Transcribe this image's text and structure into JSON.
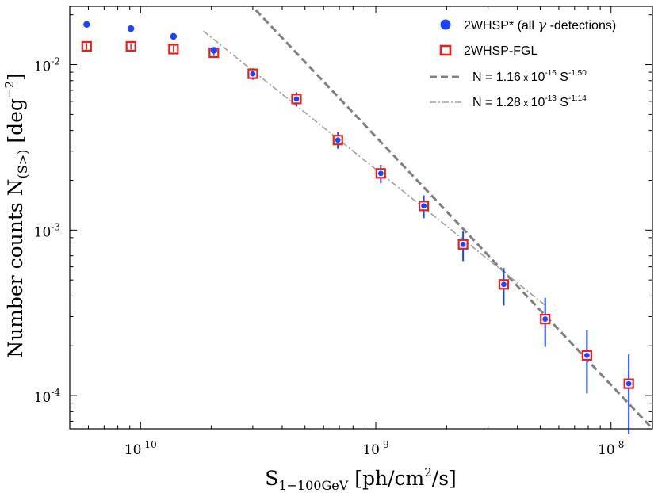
{
  "chart_data": {
    "type": "scatter",
    "xscale": "log",
    "yscale": "log",
    "xlim": [
      5e-11,
      1.5e-08
    ],
    "ylim": [
      6.3e-05,
      0.0225
    ],
    "xlabel": {
      "main": "S",
      "sub": "1−100GeV",
      "rest": " [ph/cm",
      "sup": "2",
      "tail": "/s]"
    },
    "ylabel": {
      "main": "Number counts N",
      "sub": "(S>)",
      "rest": " [deg",
      "sup": "−2",
      "tail": "]"
    },
    "xticks": [
      {
        "value": 1e-10,
        "base": "10",
        "exp": "-10"
      },
      {
        "value": 1e-09,
        "base": "10",
        "exp": "-9"
      },
      {
        "value": 1e-08,
        "base": "10",
        "exp": "-8"
      }
    ],
    "yticks": [
      {
        "value": 0.0001,
        "base": "10",
        "exp": "-4"
      },
      {
        "value": 0.001,
        "base": "10",
        "exp": "-3"
      },
      {
        "value": 0.01,
        "base": "10",
        "exp": "-2"
      }
    ],
    "series": [
      {
        "name": "2WHSP* (all γ-detections)",
        "marker": "circle",
        "color": "#1a44ff",
        "x": [
          5.9e-11,
          9.1e-11,
          1.38e-10,
          2.05e-10,
          3e-10,
          4.6e-10,
          6.9e-10,
          1.05e-09,
          1.6e-09,
          2.35e-09,
          3.5e-09,
          5.25e-09,
          7.9e-09,
          1.19e-08
        ],
        "y": [
          0.0175,
          0.0165,
          0.0148,
          0.0122,
          0.0088,
          0.0062,
          0.0035,
          0.0022,
          0.0014,
          0.00082,
          0.00047,
          0.00029,
          0.000175,
          0.000118
        ],
        "yerr_low": [
          null,
          null,
          null,
          null,
          0.0081,
          0.0056,
          0.0031,
          0.00192,
          0.00118,
          0.00065,
          0.00035,
          0.000197,
          0.000103,
          5.85e-05
        ],
        "yerr_high": [
          null,
          null,
          null,
          null,
          0.0095,
          0.0068,
          0.0039,
          0.00248,
          0.00162,
          0.00098,
          0.00059,
          0.00039,
          0.00025,
          0.000177
        ]
      },
      {
        "name": "2WHSP-FGL",
        "marker": "square-open",
        "color": "#e8201a",
        "x": [
          5.9e-11,
          9.1e-11,
          1.38e-10,
          2.05e-10,
          3e-10,
          4.6e-10,
          6.9e-10,
          1.05e-09,
          1.6e-09,
          2.35e-09,
          3.5e-09,
          5.25e-09,
          7.9e-09,
          1.19e-08
        ],
        "y": [
          0.0129,
          0.0129,
          0.0124,
          0.0118,
          0.0088,
          0.0062,
          0.0035,
          0.0022,
          0.0014,
          0.00082,
          0.00047,
          0.00029,
          0.000175,
          0.000118
        ]
      }
    ],
    "fits": [
      {
        "name": "N = 1.16 x 10-16 S-1.50",
        "style": "dashed",
        "color": "#808080",
        "norm": 1.16e-16,
        "slope": -1.5,
        "x_range": [
          1.7e-10,
          1.5e-08
        ]
      },
      {
        "name": "N = 1.28 x 10-13 S-1.14",
        "style": "dashdot",
        "color": "#a0a0a0",
        "norm": 1.28e-13,
        "slope": -1.14,
        "x_range": [
          1.85e-10,
          5.3e-09
        ]
      }
    ],
    "legend": {
      "position": "top-right",
      "entries": [
        {
          "prefix": "2WHSP* (all ",
          "greek": "γ",
          "suffix": " -detections)"
        },
        {
          "text": "2WHSP-FGL"
        },
        {
          "pre": "N = 1.16",
          "x": " x ",
          "base": "10",
          "exp": "-16",
          "s": " S",
          "sexp": "-1.50"
        },
        {
          "pre": "N = 1.28",
          "x": " x ",
          "base": "10",
          "exp": "-13",
          "s": " S",
          "sexp": "-1.14"
        }
      ]
    }
  }
}
